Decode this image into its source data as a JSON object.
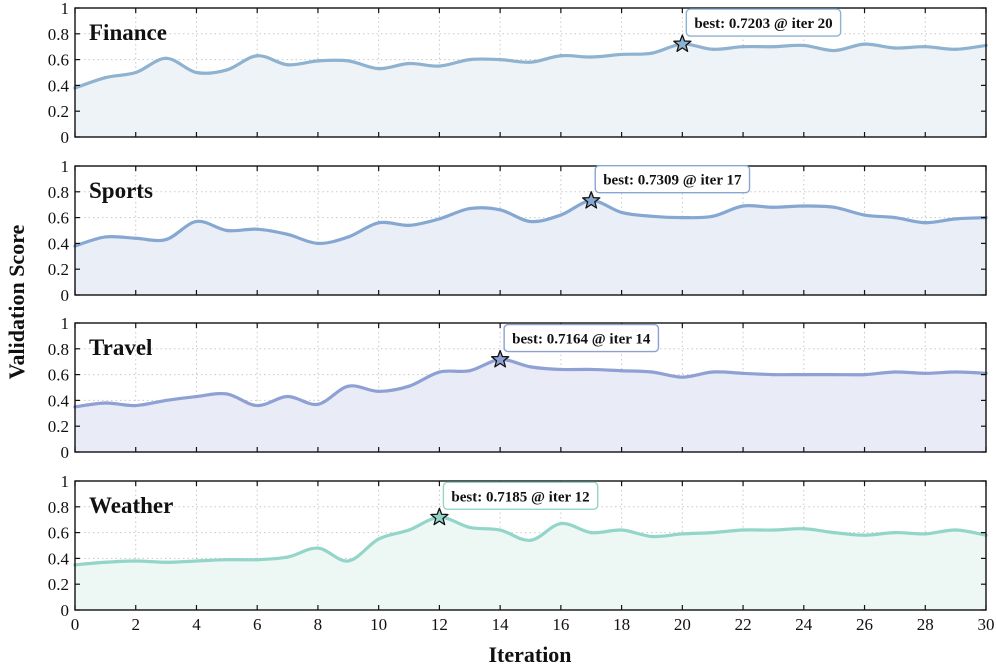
{
  "chart_data": {
    "type": "line",
    "xlabel": "Iteration",
    "ylabel": "Validation Score",
    "xlim": [
      0,
      30
    ],
    "ylim": [
      0,
      1
    ],
    "x_ticks": [
      0,
      2,
      4,
      6,
      8,
      10,
      12,
      14,
      16,
      18,
      20,
      22,
      24,
      26,
      28,
      30
    ],
    "y_ticks": [
      0,
      0.2,
      0.4,
      0.6,
      0.8,
      1
    ],
    "y_tick_labels": [
      "0",
      "0.2",
      "0.4",
      "0.6",
      "0.8",
      "1"
    ],
    "grid": "dotted",
    "x": [
      0,
      1,
      2,
      3,
      4,
      5,
      6,
      7,
      8,
      9,
      10,
      11,
      12,
      13,
      14,
      15,
      16,
      17,
      18,
      19,
      20,
      21,
      22,
      23,
      24,
      25,
      26,
      27,
      28,
      29,
      30
    ],
    "panels": [
      {
        "title": "Finance",
        "color": "#8eb2cf",
        "fill": "#edf3f7",
        "values": [
          0.38,
          0.46,
          0.5,
          0.61,
          0.5,
          0.52,
          0.63,
          0.56,
          0.59,
          0.59,
          0.53,
          0.57,
          0.55,
          0.6,
          0.6,
          0.58,
          0.63,
          0.62,
          0.64,
          0.65,
          0.7203,
          0.68,
          0.7,
          0.7,
          0.71,
          0.67,
          0.72,
          0.69,
          0.7,
          0.68,
          0.71
        ],
        "best": {
          "iter": 20,
          "value": 0.7203,
          "label": "best: 0.7203 @ iter 20"
        }
      },
      {
        "title": "Sports",
        "color": "#86a7d2",
        "fill": "#eaeff7",
        "values": [
          0.38,
          0.45,
          0.44,
          0.43,
          0.57,
          0.5,
          0.51,
          0.47,
          0.4,
          0.45,
          0.56,
          0.54,
          0.59,
          0.67,
          0.66,
          0.57,
          0.62,
          0.7309,
          0.64,
          0.61,
          0.6,
          0.61,
          0.69,
          0.68,
          0.69,
          0.68,
          0.62,
          0.6,
          0.56,
          0.59,
          0.6
        ],
        "best": {
          "iter": 17,
          "value": 0.7309,
          "label": "best: 0.7309 @ iter 17"
        }
      },
      {
        "title": "Travel",
        "color": "#8ea0d4",
        "fill": "#e9ecf7",
        "values": [
          0.35,
          0.38,
          0.36,
          0.4,
          0.43,
          0.45,
          0.36,
          0.43,
          0.37,
          0.51,
          0.47,
          0.51,
          0.62,
          0.63,
          0.7164,
          0.66,
          0.64,
          0.64,
          0.63,
          0.62,
          0.58,
          0.62,
          0.61,
          0.6,
          0.6,
          0.6,
          0.6,
          0.62,
          0.61,
          0.62,
          0.61
        ],
        "best": {
          "iter": 14,
          "value": 0.7164,
          "label": "best: 0.7164 @ iter 14"
        }
      },
      {
        "title": "Weather",
        "color": "#93d5c8",
        "fill": "#edf7f4",
        "values": [
          0.35,
          0.37,
          0.38,
          0.37,
          0.38,
          0.39,
          0.39,
          0.41,
          0.48,
          0.38,
          0.55,
          0.62,
          0.7185,
          0.64,
          0.62,
          0.54,
          0.67,
          0.6,
          0.62,
          0.57,
          0.59,
          0.6,
          0.62,
          0.62,
          0.63,
          0.6,
          0.58,
          0.6,
          0.59,
          0.62,
          0.58
        ],
        "best": {
          "iter": 12,
          "value": 0.7185,
          "label": "best: 0.7185 @ iter 12"
        }
      }
    ]
  }
}
